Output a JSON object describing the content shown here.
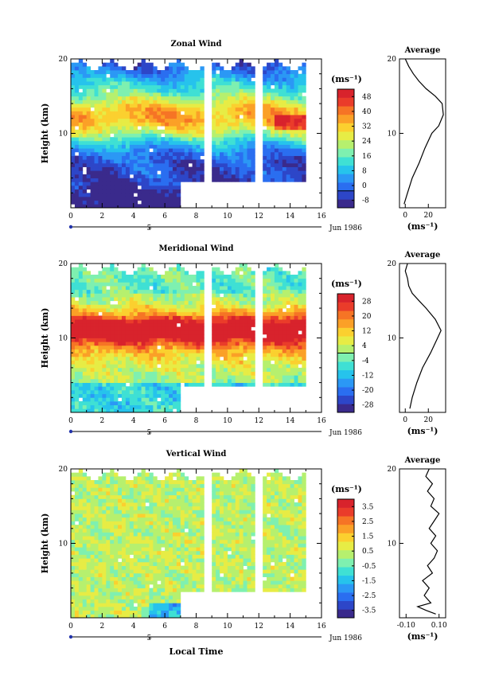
{
  "chart_data": [
    {
      "type": "heatmap",
      "title": "Zonal Wind",
      "ylabel": "Height (km)",
      "x_ticks": [
        "0",
        "2",
        "4",
        "6",
        "8",
        "10",
        "12",
        "14",
        "16"
      ],
      "y_ticks": [
        "20",
        "10"
      ],
      "xlim": [
        0,
        16
      ],
      "ylim": [
        0,
        20
      ],
      "date_tick": "5",
      "date_label": "Jun 1986",
      "colorbar": {
        "unit": "(ms⁻¹)",
        "ticks": [
          "48",
          "40",
          "32",
          "24",
          "16",
          "8",
          "0",
          "-8"
        ],
        "range": [
          -8,
          48
        ]
      },
      "profile": {
        "title": "Average",
        "x_ticks": [
          "0",
          "20"
        ],
        "y_ticks": [
          "20",
          "10"
        ],
        "xlabel": "(ms⁻¹)",
        "xlim": [
          -5,
          35
        ],
        "points": [
          [
            -1,
            0.5
          ],
          [
            2,
            2
          ],
          [
            6,
            4
          ],
          [
            12,
            6
          ],
          [
            17,
            8
          ],
          [
            23,
            10
          ],
          [
            29,
            11
          ],
          [
            33,
            12.5
          ],
          [
            32,
            14
          ],
          [
            26,
            15
          ],
          [
            18,
            16
          ],
          [
            12,
            17
          ],
          [
            7,
            18
          ],
          [
            3,
            19
          ],
          [
            0,
            20
          ]
        ]
      }
    },
    {
      "type": "heatmap",
      "title": "Meridional Wind",
      "ylabel": "Height (km)",
      "x_ticks": [
        "0",
        "2",
        "4",
        "6",
        "8",
        "10",
        "12",
        "14",
        "16"
      ],
      "y_ticks": [
        "20",
        "10"
      ],
      "xlim": [
        0,
        16
      ],
      "ylim": [
        0,
        20
      ],
      "date_tick": "5",
      "date_label": "Jun 1986",
      "colorbar": {
        "unit": "(ms⁻¹)",
        "ticks": [
          "28",
          "20",
          "12",
          "4",
          "-4",
          "-12",
          "-20",
          "-28"
        ],
        "range": [
          -28,
          28
        ]
      },
      "profile": {
        "title": "Average",
        "x_ticks": [
          "0",
          "20"
        ],
        "y_ticks": [
          "20",
          "10"
        ],
        "xlabel": "(ms⁻¹)",
        "xlim": [
          -5,
          35
        ],
        "points": [
          [
            4,
            0.5
          ],
          [
            6,
            2
          ],
          [
            10,
            4
          ],
          [
            15,
            6
          ],
          [
            22,
            8
          ],
          [
            28,
            10
          ],
          [
            31,
            11
          ],
          [
            26,
            12.5
          ],
          [
            18,
            14
          ],
          [
            12,
            15
          ],
          [
            6,
            16
          ],
          [
            3,
            17
          ],
          [
            2,
            18
          ],
          [
            0,
            19
          ],
          [
            2,
            20
          ]
        ]
      }
    },
    {
      "type": "heatmap",
      "title": "Vertical Wind",
      "ylabel": "Height (km)",
      "xlabel": "Local Time",
      "x_ticks": [
        "0",
        "2",
        "4",
        "6",
        "8",
        "10",
        "12",
        "14",
        "16"
      ],
      "y_ticks": [
        "20",
        "10"
      ],
      "xlim": [
        0,
        16
      ],
      "ylim": [
        0,
        20
      ],
      "date_tick": "5",
      "date_label": "Jun 1986",
      "colorbar": {
        "unit": "(ms⁻¹)",
        "ticks": [
          "3.5",
          "2.5",
          "1.5",
          "0.5",
          "-0.5",
          "-1.5",
          "-2.5",
          "-3.5"
        ],
        "range": [
          -4,
          4
        ]
      },
      "profile": {
        "title": "Average",
        "x_ticks": [
          "-0.10",
          "0.10"
        ],
        "y_ticks": [
          "20",
          "10"
        ],
        "xlabel": "(ms⁻¹)",
        "xlim": [
          -0.14,
          0.14
        ],
        "points": [
          [
            0.08,
            0.5
          ],
          [
            0.02,
            1
          ],
          [
            -0.03,
            1.5
          ],
          [
            0.05,
            2
          ],
          [
            0.01,
            3
          ],
          [
            0.04,
            4
          ],
          [
            0.0,
            5
          ],
          [
            0.06,
            6
          ],
          [
            0.03,
            7
          ],
          [
            0.07,
            8
          ],
          [
            0.09,
            9
          ],
          [
            0.05,
            10
          ],
          [
            0.08,
            11
          ],
          [
            0.04,
            12
          ],
          [
            0.07,
            13
          ],
          [
            0.1,
            14
          ],
          [
            0.05,
            15
          ],
          [
            0.07,
            16
          ],
          [
            0.03,
            17
          ],
          [
            0.06,
            18
          ],
          [
            0.02,
            19
          ],
          [
            0.04,
            20
          ]
        ]
      }
    }
  ]
}
